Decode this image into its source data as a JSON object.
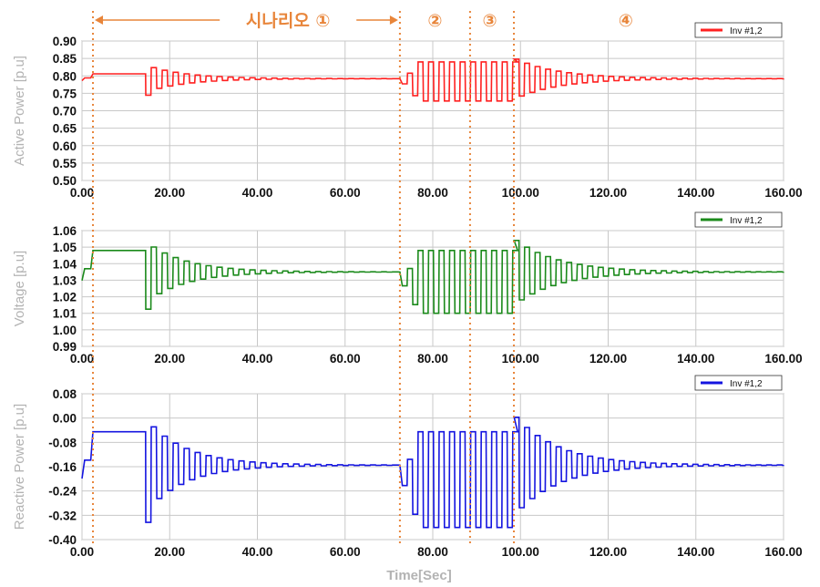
{
  "x_axis": {
    "label": "Time[Sec]",
    "range": [
      0,
      160
    ],
    "ticks": [
      0,
      20,
      40,
      60,
      80,
      100,
      120,
      140,
      160
    ],
    "tick_labels": [
      "0.00",
      "20.00",
      "40.00",
      "60.00",
      "80.00",
      "100.00",
      "120.00",
      "140.00",
      "160.00"
    ]
  },
  "scenario": {
    "dividers": [
      2.5,
      72.5,
      88.5,
      98.5
    ],
    "line_color": "#e8853a",
    "labels": [
      {
        "text": "시나리오 ①",
        "x": 47
      },
      {
        "text": "②",
        "x": 80.5
      },
      {
        "text": "③",
        "x": 93
      },
      {
        "text": "④",
        "x": 124
      }
    ],
    "arrow_span": [
      2.5,
      72.5
    ]
  },
  "chart_data": [
    {
      "type": "line",
      "ylabel": "Active Power [p.u]",
      "ylim": [
        0.5,
        0.9
      ],
      "yticks": [
        0.5,
        0.55,
        0.6,
        0.65,
        0.7,
        0.75,
        0.8,
        0.85,
        0.9
      ],
      "ytick_labels": [
        "0.50",
        "0.55",
        "0.60",
        "0.65",
        "0.70",
        "0.75",
        "0.80",
        "0.85",
        "0.90"
      ],
      "legend": {
        "label": "Inv #1,2",
        "position": "top-right"
      },
      "grid": true,
      "color": "#ff2020",
      "series": [
        {
          "name": "Inv #1,2",
          "steady": 0.792,
          "initial": 0.806,
          "burst_low": 0.728,
          "burst_high": 0.84
        }
      ]
    },
    {
      "type": "line",
      "ylabel": "Voltage [p.u]",
      "ylim": [
        0.99,
        1.06
      ],
      "yticks": [
        0.99,
        1.0,
        1.01,
        1.02,
        1.03,
        1.04,
        1.05,
        1.06
      ],
      "ytick_labels": [
        "0.99",
        "1.00",
        "1.01",
        "1.02",
        "1.03",
        "1.04",
        "1.05",
        "1.06"
      ],
      "legend": {
        "label": "Inv #1,2",
        "position": "top-right"
      },
      "grid": true,
      "color": "#1b8a1b",
      "series": [
        {
          "name": "Inv #1,2",
          "steady": 1.035,
          "initial": 1.048,
          "burst_low": 1.01,
          "burst_high": 1.048
        }
      ]
    },
    {
      "type": "line",
      "ylabel": "Reactive Power [p.u]",
      "ylim": [
        -0.4,
        0.08
      ],
      "yticks": [
        -0.4,
        -0.32,
        -0.24,
        -0.16,
        -0.08,
        0.0,
        0.08
      ],
      "ytick_labels": [
        "-0.40",
        "-0.32",
        "-0.24",
        "-0.16",
        "-0.08",
        "0.00",
        "0.08"
      ],
      "legend": {
        "label": "Inv #1,2",
        "position": "top-right"
      },
      "grid": true,
      "color": "#1414e0",
      "series": [
        {
          "name": "Inv #1,2",
          "steady": -0.155,
          "initial": -0.045,
          "burst_low": -0.36,
          "burst_high": -0.045
        }
      ]
    }
  ]
}
